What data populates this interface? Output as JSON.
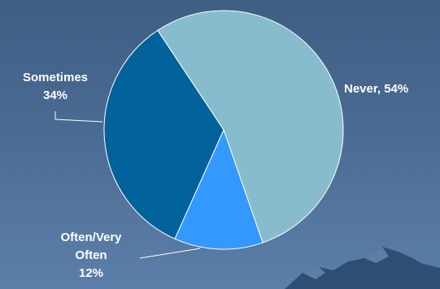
{
  "chart_data": {
    "type": "pie",
    "title": "",
    "slices": [
      {
        "label": "Never",
        "value": 54,
        "color": "#86bccb"
      },
      {
        "label": "Often/Very Often",
        "value": 12,
        "color": "#3399ff"
      },
      {
        "label": "Sometimes",
        "value": 34,
        "color": "#02629b"
      }
    ],
    "data_labels": {
      "never": "Never, 54%",
      "often_line1": "Often/Very",
      "often_line2": "Often",
      "often_pct": "12%",
      "sometimes_line1": "Sometimes",
      "sometimes_pct": "34%"
    }
  }
}
